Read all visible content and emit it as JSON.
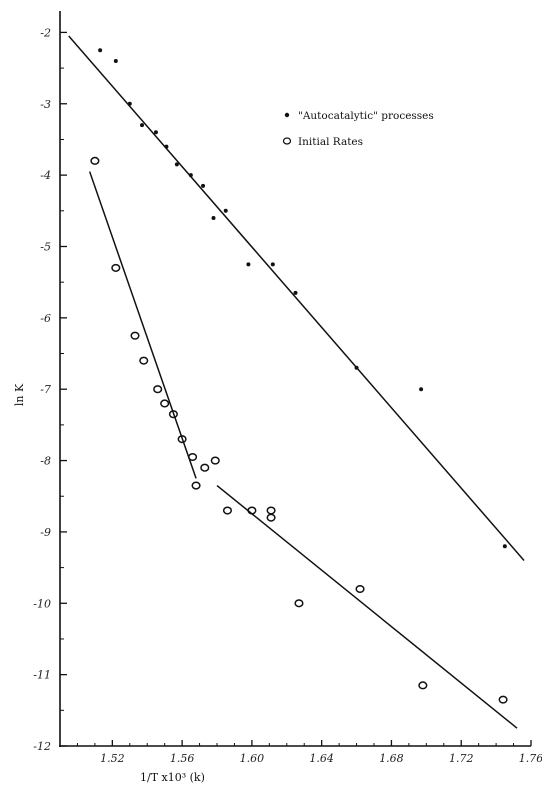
{
  "chart_data": {
    "type": "scatter",
    "xlabel": "1/T x10³ (k)",
    "ylabel": "ln K",
    "xlim": [
      1.49,
      1.76
    ],
    "ylim": [
      -12,
      -1.7
    ],
    "x_ticks": [
      1.52,
      1.56,
      1.6,
      1.64,
      1.68,
      1.72,
      1.76
    ],
    "x_tick_labels": [
      "1.52",
      "1.56",
      "1.60",
      "1.64",
      "1.68",
      "1.72",
      "1.76"
    ],
    "y_ticks": [
      -2,
      -3,
      -4,
      -5,
      -6,
      -7,
      -8,
      -9,
      -10,
      -11,
      -12
    ],
    "y_tick_labels": [
      "-2",
      "-3",
      "-4",
      "-5",
      "-6",
      "-7",
      "-8",
      "-9",
      "-10",
      "-11",
      "-12"
    ],
    "legend_position": "top-right",
    "series": [
      {
        "name": "\"Autocatalytic\" processes",
        "marker": "dot",
        "color": "#111111",
        "points": [
          {
            "x": 1.513,
            "y": -2.25
          },
          {
            "x": 1.522,
            "y": -2.4
          },
          {
            "x": 1.53,
            "y": -3.0
          },
          {
            "x": 1.537,
            "y": -3.3
          },
          {
            "x": 1.545,
            "y": -3.4
          },
          {
            "x": 1.551,
            "y": -3.6
          },
          {
            "x": 1.557,
            "y": -3.85
          },
          {
            "x": 1.565,
            "y": -4.0
          },
          {
            "x": 1.572,
            "y": -4.15
          },
          {
            "x": 1.578,
            "y": -4.6
          },
          {
            "x": 1.585,
            "y": -4.5
          },
          {
            "x": 1.598,
            "y": -5.25
          },
          {
            "x": 1.612,
            "y": -5.25
          },
          {
            "x": 1.625,
            "y": -5.65
          },
          {
            "x": 1.66,
            "y": -6.7
          },
          {
            "x": 1.697,
            "y": -7.0
          },
          {
            "x": 1.745,
            "y": -9.2
          }
        ],
        "fit_lines": [
          {
            "from": [
              1.495,
              -2.05
            ],
            "to": [
              1.756,
              -9.4
            ]
          }
        ]
      },
      {
        "name": "Initial Rates",
        "marker": "open-circle",
        "color": "#111111",
        "points": [
          {
            "x": 1.51,
            "y": -3.8
          },
          {
            "x": 1.522,
            "y": -5.3
          },
          {
            "x": 1.533,
            "y": -6.25
          },
          {
            "x": 1.538,
            "y": -6.6
          },
          {
            "x": 1.546,
            "y": -7.0
          },
          {
            "x": 1.55,
            "y": -7.2
          },
          {
            "x": 1.555,
            "y": -7.35
          },
          {
            "x": 1.56,
            "y": -7.7
          },
          {
            "x": 1.566,
            "y": -7.95
          },
          {
            "x": 1.573,
            "y": -8.1
          },
          {
            "x": 1.579,
            "y": -8.0
          },
          {
            "x": 1.568,
            "y": -8.35
          },
          {
            "x": 1.586,
            "y": -8.7
          },
          {
            "x": 1.6,
            "y": -8.7
          },
          {
            "x": 1.611,
            "y": -8.7
          },
          {
            "x": 1.611,
            "y": -8.8
          },
          {
            "x": 1.627,
            "y": -10.0
          },
          {
            "x": 1.662,
            "y": -9.8
          },
          {
            "x": 1.698,
            "y": -11.15
          },
          {
            "x": 1.744,
            "y": -11.35
          }
        ],
        "fit_lines": [
          {
            "from": [
              1.507,
              -3.95
            ],
            "to": [
              1.568,
              -8.25
            ]
          },
          {
            "from": [
              1.58,
              -8.35
            ],
            "to": [
              1.752,
              -11.75
            ]
          }
        ]
      }
    ]
  }
}
